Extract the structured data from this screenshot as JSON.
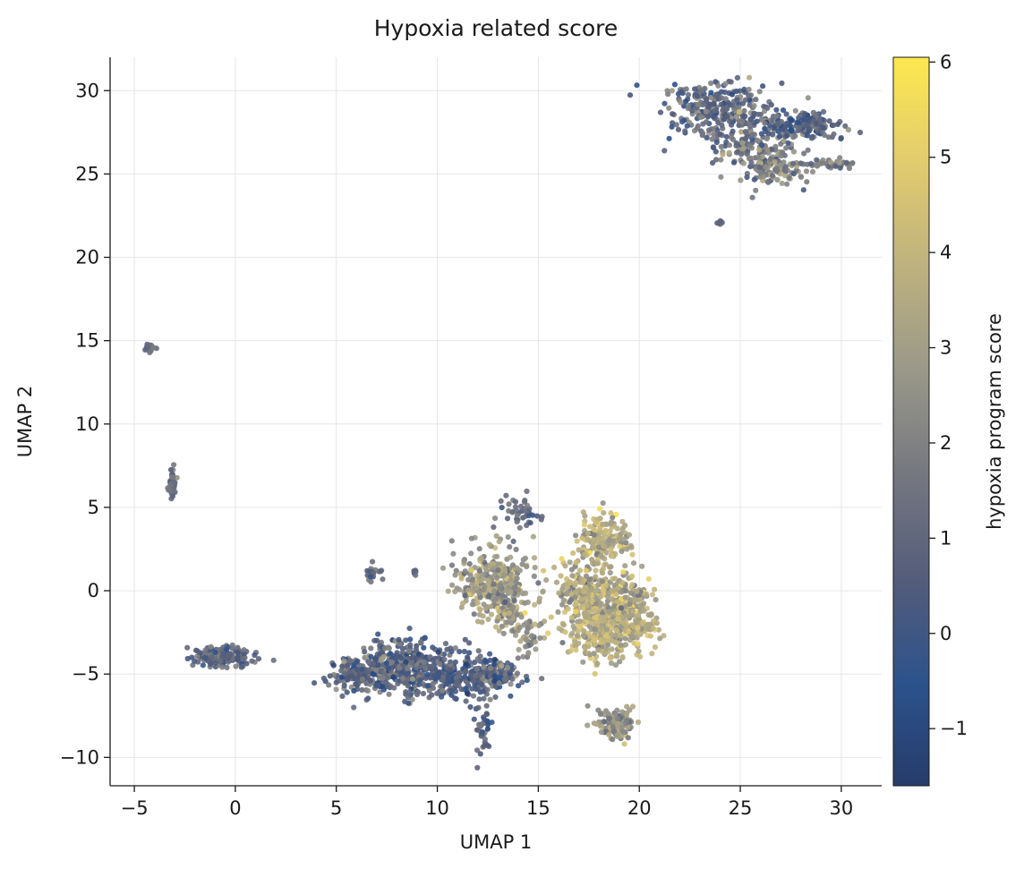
{
  "chart_data": {
    "type": "scatter",
    "title": "Hypoxia related score",
    "xlabel": "UMAP 1",
    "ylabel": "UMAP 2",
    "xlim": [
      -6.2,
      32.0
    ],
    "ylim": [
      -11.7,
      32.0
    ],
    "xticks": [
      -5,
      0,
      5,
      10,
      15,
      20,
      25,
      30
    ],
    "yticks": [
      -10,
      -5,
      0,
      5,
      10,
      15,
      20,
      25,
      30
    ],
    "grid": true,
    "colorbar": {
      "label": "hypoxia program score",
      "range": [
        -1.6,
        6.05
      ],
      "ticks": [
        -1,
        0,
        1,
        2,
        3,
        4,
        5,
        6
      ],
      "colormap": [
        "#273c6a",
        "#2c528c",
        "#535c7a",
        "#767880",
        "#9a9889",
        "#bdb17f",
        "#e3cc6e",
        "#fde84f"
      ]
    },
    "clusters": [
      {
        "cx": 24.0,
        "cy": 28.8,
        "sx": 1.4,
        "sy": 0.8,
        "n": 300,
        "mean": 1.0,
        "sd": 0.9
      },
      {
        "cx": 25.8,
        "cy": 26.5,
        "sx": 0.9,
        "sy": 1.0,
        "n": 160,
        "mean": 1.5,
        "sd": 0.9
      },
      {
        "cx": 27.0,
        "cy": 25.2,
        "sx": 0.8,
        "sy": 0.5,
        "n": 80,
        "mean": 2.0,
        "sd": 0.8
      },
      {
        "cx": 28.4,
        "cy": 27.9,
        "sx": 0.9,
        "sy": 0.4,
        "n": 150,
        "mean": 0.8,
        "sd": 0.9
      },
      {
        "cx": 29.4,
        "cy": 25.6,
        "sx": 0.7,
        "sy": 0.12,
        "n": 35,
        "mean": 1.5,
        "sd": 0.6
      },
      {
        "cx": 24.0,
        "cy": 22.1,
        "sx": 0.08,
        "sy": 0.1,
        "n": 8,
        "mean": 1.2,
        "sd": 0.4
      },
      {
        "cx": -4.2,
        "cy": 14.6,
        "sx": 0.15,
        "sy": 0.12,
        "n": 18,
        "mean": 1.0,
        "sd": 0.5
      },
      {
        "cx": -3.1,
        "cy": 6.5,
        "sx": 0.1,
        "sy": 0.5,
        "n": 30,
        "mean": 1.1,
        "sd": 0.5
      },
      {
        "cx": -0.6,
        "cy": -3.9,
        "sx": 0.75,
        "sy": 0.3,
        "n": 160,
        "mean": 0.9,
        "sd": 0.7
      },
      {
        "cx": 6.8,
        "cy": 1.0,
        "sx": 0.3,
        "sy": 0.3,
        "n": 20,
        "mean": 1.0,
        "sd": 0.5
      },
      {
        "cx": 8.9,
        "cy": 1.05,
        "sx": 0.08,
        "sy": 0.08,
        "n": 6,
        "mean": 1.0,
        "sd": 0.4
      },
      {
        "cx": 6.2,
        "cy": -5.0,
        "sx": 0.9,
        "sy": 0.5,
        "n": 180,
        "mean": 1.0,
        "sd": 0.9
      },
      {
        "cx": 8.6,
        "cy": -4.6,
        "sx": 1.2,
        "sy": 0.8,
        "n": 380,
        "mean": 0.8,
        "sd": 1.0
      },
      {
        "cx": 11.4,
        "cy": -5.2,
        "sx": 0.9,
        "sy": 0.6,
        "n": 200,
        "mean": 0.5,
        "sd": 0.9
      },
      {
        "cx": 12.9,
        "cy": -5.0,
        "sx": 0.6,
        "sy": 0.5,
        "n": 90,
        "mean": 0.8,
        "sd": 0.9
      },
      {
        "cx": 12.3,
        "cy": -8.2,
        "sx": 0.18,
        "sy": 0.9,
        "n": 40,
        "mean": 0.9,
        "sd": 0.7
      },
      {
        "cx": 12.7,
        "cy": 0.4,
        "sx": 0.9,
        "sy": 1.0,
        "n": 320,
        "mean": 2.8,
        "sd": 0.9
      },
      {
        "cx": 13.6,
        "cy": -1.3,
        "sx": 0.4,
        "sy": 0.6,
        "n": 60,
        "mean": 3.0,
        "sd": 1.0
      },
      {
        "cx": 14.6,
        "cy": -2.8,
        "sx": 0.3,
        "sy": 0.6,
        "n": 40,
        "mean": 2.6,
        "sd": 0.8
      },
      {
        "cx": 14.2,
        "cy": 4.8,
        "sx": 0.45,
        "sy": 0.45,
        "n": 40,
        "mean": 1.2,
        "sd": 0.8
      },
      {
        "cx": 18.2,
        "cy": 3.0,
        "sx": 0.6,
        "sy": 0.8,
        "n": 160,
        "mean": 3.6,
        "sd": 0.8
      },
      {
        "cx": 17.8,
        "cy": -0.2,
        "sx": 1.0,
        "sy": 1.0,
        "n": 300,
        "mean": 3.4,
        "sd": 0.9
      },
      {
        "cx": 18.4,
        "cy": -2.5,
        "sx": 1.0,
        "sy": 1.0,
        "n": 260,
        "mean": 3.7,
        "sd": 0.8
      },
      {
        "cx": 19.6,
        "cy": -0.8,
        "sx": 0.6,
        "sy": 0.8,
        "n": 100,
        "mean": 3.2,
        "sd": 0.8
      },
      {
        "cx": 20.2,
        "cy": -2.2,
        "sx": 0.4,
        "sy": 0.25,
        "n": 30,
        "mean": 3.8,
        "sd": 0.6
      },
      {
        "cx": 18.8,
        "cy": -8.0,
        "sx": 0.5,
        "sy": 0.5,
        "n": 110,
        "mean": 2.5,
        "sd": 0.8
      }
    ]
  }
}
